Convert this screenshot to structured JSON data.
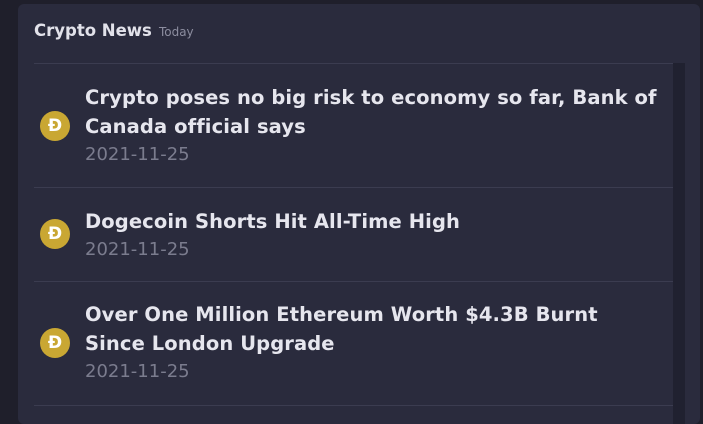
{
  "header": {
    "title": "Crypto News",
    "subtitle": "Today"
  },
  "news": [
    {
      "icon": "dogecoin-icon",
      "coin_symbol": "Ð",
      "headline": "Crypto poses no big risk to economy so far, Bank of Canada official says",
      "date": "2021-11-25"
    },
    {
      "icon": "dogecoin-icon",
      "coin_symbol": "Ð",
      "headline": "Dogecoin Shorts Hit All-Time High",
      "date": "2021-11-25"
    },
    {
      "icon": "dogecoin-icon",
      "coin_symbol": "Ð",
      "headline": "Over One Million Ethereum Worth $4.3B Burnt Since London Upgrade",
      "date": "2021-11-25"
    }
  ],
  "colors": {
    "coin": "#c9a733",
    "card_background": "#2a2b3d",
    "page_background": "#1f1f2b"
  }
}
